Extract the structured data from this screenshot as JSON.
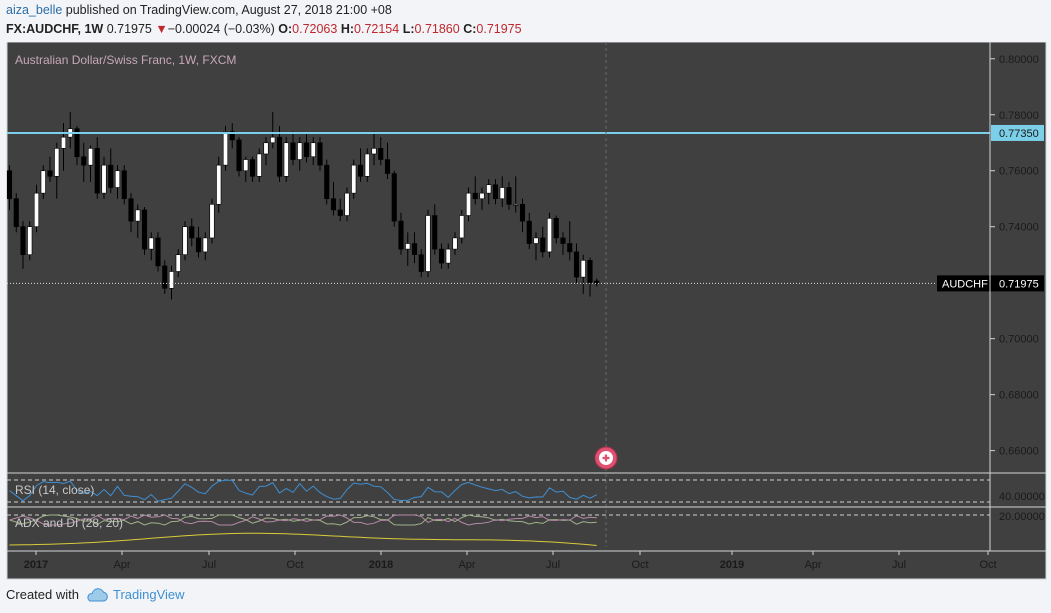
{
  "publish": {
    "user": "aiza_belle",
    "text": "published on TradingView.com, August 27, 2018 21:00 +08"
  },
  "quote": {
    "symbol": "FX:AUDCHF, 1W",
    "last": "0.71975",
    "change_arrow": "▼",
    "change": "−0.00024 (−0.03%)",
    "o_label": "O:",
    "o": "0.72063",
    "h_label": "H:",
    "h": "0.72154",
    "l_label": "L:",
    "l": "0.71860",
    "c_label": "C:",
    "c": "0.71975"
  },
  "footer": {
    "created_with": "Created with",
    "brand": "TradingView"
  },
  "chart_data": {
    "type": "candlestick",
    "title": "Australian Dollar/Swiss Franc, 1W, FXCM",
    "ylim": [
      0.652,
      0.806
    ],
    "y_ticks": [
      "0.66000",
      "0.68000",
      "0.70000",
      "0.72000",
      "0.74000",
      "0.76000",
      "0.78000",
      "0.80000"
    ],
    "x_ticks": [
      "2017",
      "Apr",
      "Jul",
      "Oct",
      "2018",
      "Apr",
      "Jul",
      "Oct",
      "2019",
      "Apr",
      "Jul",
      "Oct"
    ],
    "bold_x_ticks": [
      "2017",
      "2018",
      "2019"
    ],
    "horizontal_line": {
      "value": 0.7735,
      "label": "0.77350",
      "color": "#7ccfe8"
    },
    "last_price": {
      "value": 0.71975,
      "symbol": "AUDCHF",
      "label": "0.71975"
    },
    "candles": [
      [
        0.76,
        0.762,
        0.746,
        0.75
      ],
      [
        0.75,
        0.752,
        0.738,
        0.74
      ],
      [
        0.74,
        0.742,
        0.725,
        0.73
      ],
      [
        0.73,
        0.742,
        0.728,
        0.74
      ],
      [
        0.74,
        0.755,
        0.738,
        0.752
      ],
      [
        0.752,
        0.762,
        0.75,
        0.76
      ],
      [
        0.76,
        0.765,
        0.756,
        0.758
      ],
      [
        0.758,
        0.77,
        0.75,
        0.768
      ],
      [
        0.768,
        0.777,
        0.76,
        0.772
      ],
      [
        0.772,
        0.781,
        0.768,
        0.775
      ],
      [
        0.775,
        0.776,
        0.762,
        0.765
      ],
      [
        0.765,
        0.77,
        0.756,
        0.762
      ],
      [
        0.762,
        0.769,
        0.756,
        0.768
      ],
      [
        0.768,
        0.772,
        0.75,
        0.752
      ],
      [
        0.752,
        0.765,
        0.75,
        0.762
      ],
      [
        0.762,
        0.768,
        0.752,
        0.754
      ],
      [
        0.754,
        0.762,
        0.75,
        0.76
      ],
      [
        0.76,
        0.762,
        0.748,
        0.75
      ],
      [
        0.75,
        0.752,
        0.738,
        0.742
      ],
      [
        0.742,
        0.748,
        0.736,
        0.746
      ],
      [
        0.746,
        0.747,
        0.73,
        0.732
      ],
      [
        0.732,
        0.738,
        0.728,
        0.736
      ],
      [
        0.736,
        0.738,
        0.724,
        0.726
      ],
      [
        0.726,
        0.728,
        0.716,
        0.718
      ],
      [
        0.718,
        0.726,
        0.714,
        0.724
      ],
      [
        0.724,
        0.732,
        0.722,
        0.73
      ],
      [
        0.73,
        0.742,
        0.728,
        0.74
      ],
      [
        0.74,
        0.743,
        0.733,
        0.736
      ],
      [
        0.736,
        0.74,
        0.729,
        0.731
      ],
      [
        0.731,
        0.738,
        0.728,
        0.736
      ],
      [
        0.736,
        0.75,
        0.734,
        0.748
      ],
      [
        0.748,
        0.765,
        0.745,
        0.762
      ],
      [
        0.762,
        0.776,
        0.76,
        0.774
      ],
      [
        0.774,
        0.777,
        0.768,
        0.771
      ],
      [
        0.771,
        0.772,
        0.758,
        0.76
      ],
      [
        0.76,
        0.765,
        0.756,
        0.764
      ],
      [
        0.764,
        0.765,
        0.756,
        0.758
      ],
      [
        0.758,
        0.768,
        0.756,
        0.766
      ],
      [
        0.766,
        0.772,
        0.762,
        0.77
      ],
      [
        0.77,
        0.781,
        0.768,
        0.772
      ],
      [
        0.772,
        0.776,
        0.756,
        0.758
      ],
      [
        0.758,
        0.772,
        0.756,
        0.77
      ],
      [
        0.77,
        0.774,
        0.762,
        0.764
      ],
      [
        0.764,
        0.772,
        0.76,
        0.77
      ],
      [
        0.77,
        0.773,
        0.763,
        0.765
      ],
      [
        0.765,
        0.772,
        0.762,
        0.77
      ],
      [
        0.77,
        0.772,
        0.76,
        0.762
      ],
      [
        0.762,
        0.764,
        0.748,
        0.75
      ],
      [
        0.75,
        0.756,
        0.744,
        0.746
      ],
      [
        0.746,
        0.75,
        0.742,
        0.744
      ],
      [
        0.744,
        0.754,
        0.742,
        0.752
      ],
      [
        0.752,
        0.764,
        0.75,
        0.762
      ],
      [
        0.762,
        0.768,
        0.756,
        0.758
      ],
      [
        0.758,
        0.768,
        0.756,
        0.766
      ],
      [
        0.766,
        0.774,
        0.762,
        0.768
      ],
      [
        0.768,
        0.772,
        0.762,
        0.764
      ],
      [
        0.764,
        0.77,
        0.757,
        0.759
      ],
      [
        0.759,
        0.76,
        0.74,
        0.742
      ],
      [
        0.742,
        0.745,
        0.73,
        0.732
      ],
      [
        0.732,
        0.738,
        0.726,
        0.734
      ],
      [
        0.734,
        0.738,
        0.727,
        0.73
      ],
      [
        0.73,
        0.732,
        0.722,
        0.724
      ],
      [
        0.724,
        0.746,
        0.722,
        0.744
      ],
      [
        0.744,
        0.748,
        0.73,
        0.732
      ],
      [
        0.732,
        0.734,
        0.725,
        0.727
      ],
      [
        0.727,
        0.734,
        0.725,
        0.732
      ],
      [
        0.732,
        0.738,
        0.73,
        0.736
      ],
      [
        0.736,
        0.746,
        0.734,
        0.744
      ],
      [
        0.744,
        0.754,
        0.742,
        0.752
      ],
      [
        0.752,
        0.758,
        0.748,
        0.75
      ],
      [
        0.75,
        0.754,
        0.746,
        0.752
      ],
      [
        0.752,
        0.757,
        0.748,
        0.755
      ],
      [
        0.755,
        0.757,
        0.748,
        0.75
      ],
      [
        0.75,
        0.758,
        0.747,
        0.754
      ],
      [
        0.754,
        0.756,
        0.746,
        0.748
      ],
      [
        0.748,
        0.758,
        0.745,
        0.748
      ],
      [
        0.748,
        0.75,
        0.738,
        0.742
      ],
      [
        0.742,
        0.745,
        0.732,
        0.734
      ],
      [
        0.734,
        0.738,
        0.728,
        0.736
      ],
      [
        0.736,
        0.74,
        0.729,
        0.731
      ],
      [
        0.731,
        0.745,
        0.729,
        0.743
      ],
      [
        0.743,
        0.744,
        0.734,
        0.736
      ],
      [
        0.736,
        0.738,
        0.73,
        0.734
      ],
      [
        0.734,
        0.742,
        0.728,
        0.731
      ],
      [
        0.731,
        0.734,
        0.72,
        0.722
      ],
      [
        0.722,
        0.73,
        0.716,
        0.728
      ],
      [
        0.728,
        0.729,
        0.715,
        0.72
      ],
      [
        0.7206,
        0.7215,
        0.7186,
        0.7198
      ]
    ],
    "indicators": [
      {
        "label": "RSI (14, close)",
        "level": "40.00000",
        "color": "#3f8fd2"
      },
      {
        "label": "ADX and DI (28, 20)",
        "level": "20.00000",
        "lines": [
          {
            "name": "ADX",
            "color": "#d8cc3b"
          },
          {
            "name": "+DI",
            "color": "#a0b28a"
          },
          {
            "name": "-DI",
            "color": "#b58aa6"
          }
        ]
      }
    ]
  }
}
